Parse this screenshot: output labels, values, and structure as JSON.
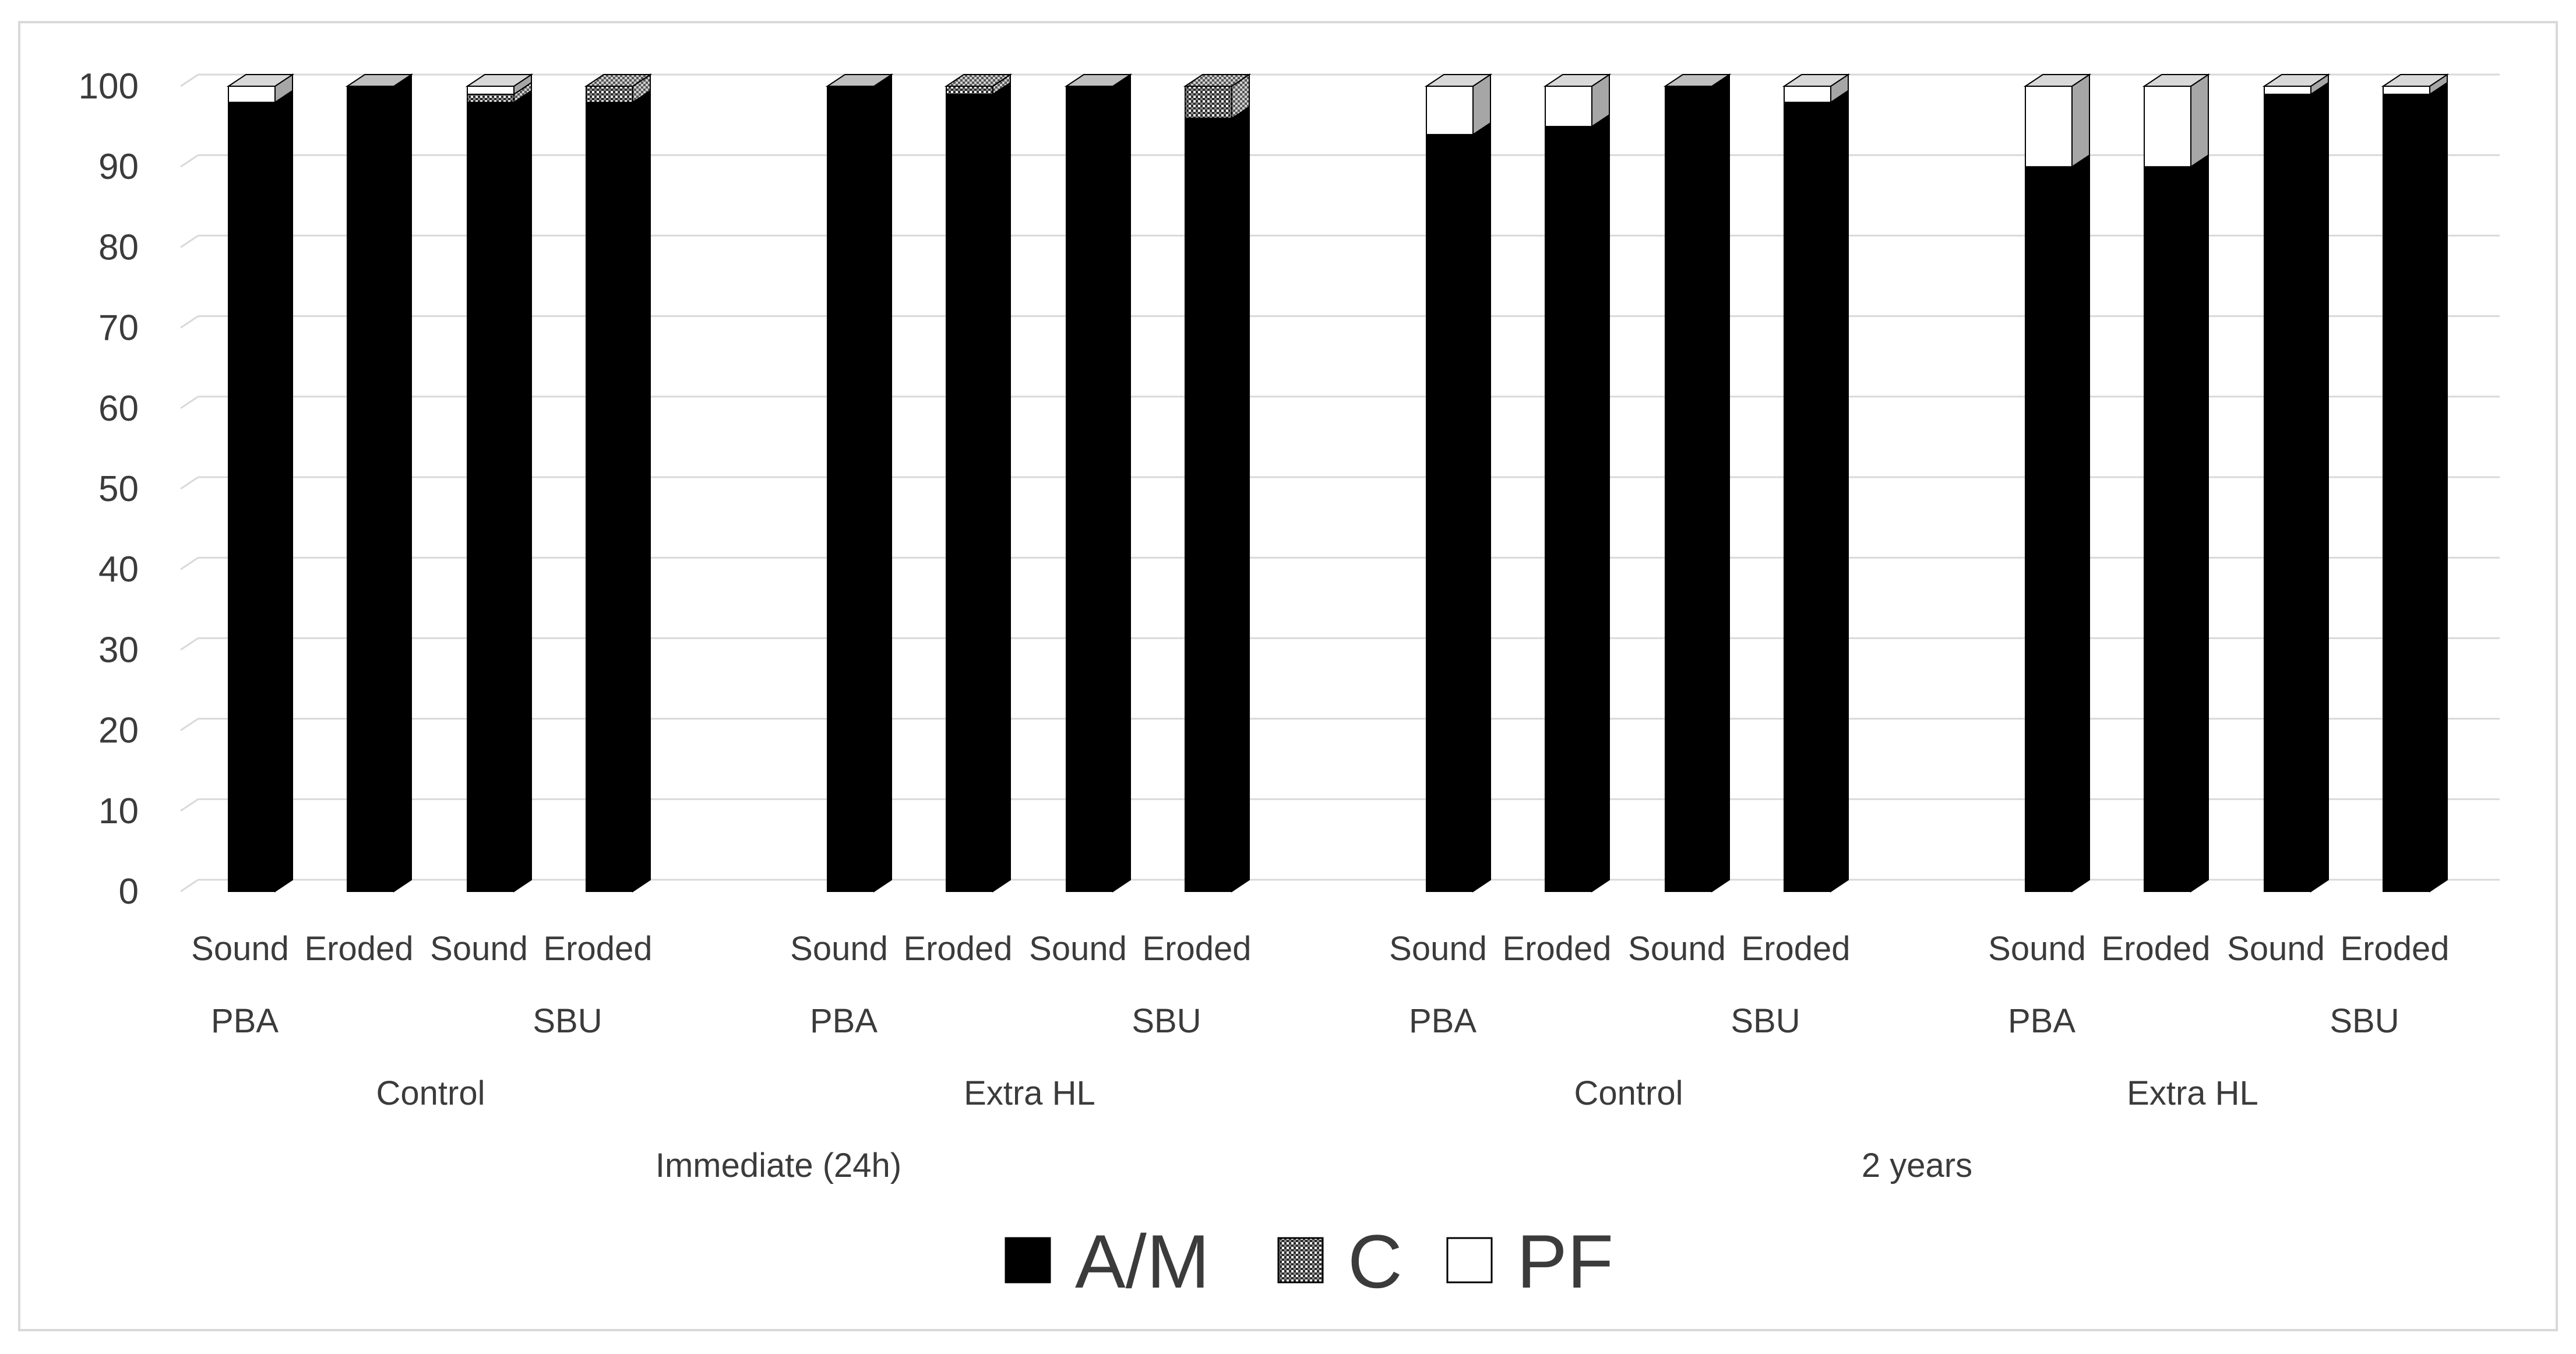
{
  "chart_data": {
    "type": "bar",
    "stacked": true,
    "three_d": true,
    "title": "",
    "xlabel": "",
    "ylabel": "",
    "ylim": [
      0,
      100
    ],
    "yticks": [
      0,
      10,
      20,
      30,
      40,
      50,
      60,
      70,
      80,
      90,
      100
    ],
    "yticks_text": [
      "0",
      "10",
      "20",
      "30",
      "40",
      "50",
      "60",
      "70",
      "80",
      "90",
      "100"
    ],
    "grid": true,
    "legend_position": "bottom",
    "categories": [
      "Sound",
      "Eroded",
      "Sound",
      "Eroded",
      "Sound",
      "Eroded",
      "Sound",
      "Eroded",
      "Sound",
      "Eroded",
      "Sound",
      "Eroded",
      "Sound",
      "Eroded",
      "Sound",
      "Eroded"
    ],
    "level2_labels": [
      "PBA",
      "SBU",
      "PBA",
      "SBU",
      "PBA",
      "SBU",
      "PBA",
      "SBU"
    ],
    "level3_labels": [
      "Control",
      "Extra HL",
      "Control",
      "Extra HL"
    ],
    "level4_labels": [
      "Immediate (24h)",
      "2 years"
    ],
    "series": [
      {
        "name": "A/M",
        "color": "#000000",
        "values": [
          98,
          100,
          98,
          98,
          100,
          99,
          100,
          96,
          94,
          95,
          100,
          98,
          90,
          90,
          99,
          99
        ]
      },
      {
        "name": "C",
        "color": "#8c8c8c",
        "values": [
          0,
          0,
          1,
          2,
          0,
          1,
          0,
          4,
          0,
          0,
          0,
          0,
          0,
          0,
          0,
          0
        ]
      },
      {
        "name": "PF",
        "color": "#ffffff",
        "values": [
          2,
          0,
          1,
          0,
          0,
          0,
          0,
          0,
          6,
          5,
          0,
          2,
          10,
          10,
          1,
          1
        ]
      }
    ]
  }
}
